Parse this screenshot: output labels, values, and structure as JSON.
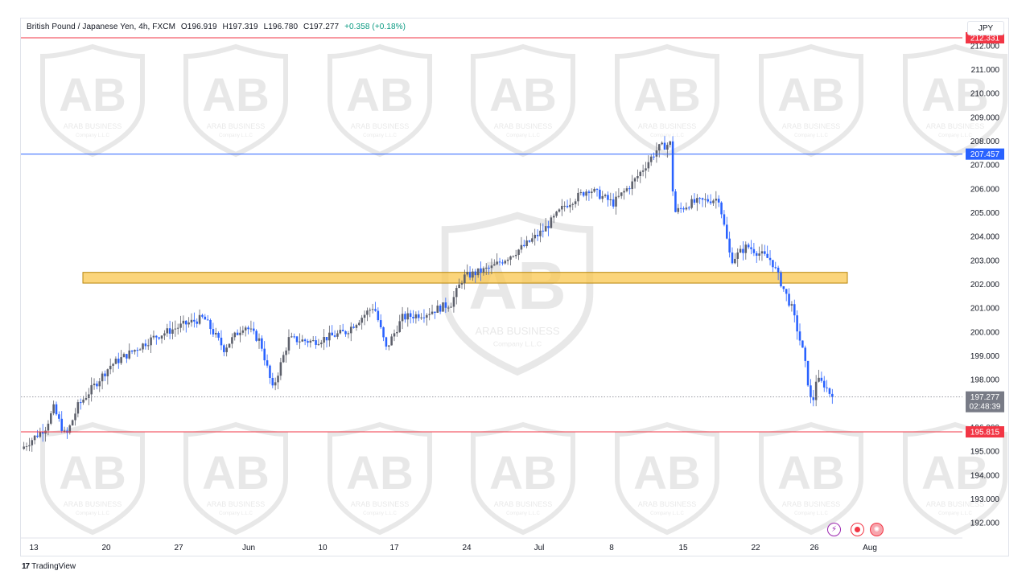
{
  "header": {
    "symbol": "British Pound / Japanese Yen, 4h, FXCM",
    "open": "O196.919",
    "high": "H197.319",
    "low": "L196.780",
    "close": "C197.277",
    "change": "+0.358 (+0.18%)"
  },
  "currency_button": "JPY",
  "footer": {
    "brand": "TradingView"
  },
  "watermark": {
    "name": "ARAB BUSINESS",
    "sub": "Company L.L.C"
  },
  "colors": {
    "up": "#089981",
    "down": "#2962ff",
    "candle": "#5d606b",
    "resistance_red": "#f23645",
    "blue_level": "#2962ff",
    "zone_fill": "#f9c74f",
    "zone_border": "#b8860b",
    "last_price": "#787b86"
  },
  "icons": [
    "lightning-icon",
    "record-icon",
    "globe-icon"
  ],
  "chart_data": {
    "type": "candlestick",
    "title": "British Pound / Japanese Yen, 4h, FXCM",
    "y_axis": {
      "ticks": [
        "212.000",
        "211.000",
        "210.000",
        "209.000",
        "208.000",
        "207.000",
        "206.000",
        "205.000",
        "204.000",
        "203.000",
        "202.000",
        "201.000",
        "200.000",
        "199.000",
        "198.000",
        "196.000",
        "195.000",
        "194.000",
        "193.000",
        "192.000"
      ],
      "ylim": [
        191.4,
        212.4
      ]
    },
    "x_axis": {
      "ticks": [
        "13",
        "20",
        "27",
        "Jun",
        "10",
        "17",
        "24",
        "Jul",
        "8",
        "15",
        "22",
        "26",
        "Aug"
      ]
    },
    "levels": [
      {
        "name": "resistance-top",
        "value": 212.331,
        "label": "212.331",
        "color": "#f23645"
      },
      {
        "name": "blue-level",
        "value": 207.457,
        "label": "207.457",
        "color": "#2962ff"
      },
      {
        "name": "support",
        "value": 195.815,
        "label": "195.815",
        "color": "#f23645"
      }
    ],
    "zone": {
      "from": 202.05,
      "to": 202.5,
      "start": "17 May",
      "end": "29 Jul"
    },
    "last_price": {
      "value": 197.277,
      "label": "197.277",
      "countdown": "02:48:39"
    },
    "path_anchors": [
      [
        0,
        195.1
      ],
      [
        0.03,
        196.0
      ],
      [
        0.04,
        196.8
      ],
      [
        0.055,
        195.6
      ],
      [
        0.07,
        196.9
      ],
      [
        0.11,
        198.6
      ],
      [
        0.165,
        199.8
      ],
      [
        0.2,
        200.3
      ],
      [
        0.225,
        200.6
      ],
      [
        0.25,
        199.3
      ],
      [
        0.275,
        200.3
      ],
      [
        0.295,
        199.6
      ],
      [
        0.31,
        197.6
      ],
      [
        0.33,
        199.7
      ],
      [
        0.36,
        199.6
      ],
      [
        0.4,
        200.0
      ],
      [
        0.435,
        201.1
      ],
      [
        0.45,
        199.3
      ],
      [
        0.47,
        200.6
      ],
      [
        0.5,
        200.8
      ],
      [
        0.53,
        201.2
      ],
      [
        0.545,
        202.3
      ],
      [
        0.58,
        202.7
      ],
      [
        0.62,
        203.6
      ],
      [
        0.645,
        204.3
      ],
      [
        0.67,
        205.3
      ],
      [
        0.7,
        206.0
      ],
      [
        0.73,
        205.4
      ],
      [
        0.755,
        206.3
      ],
      [
        0.785,
        207.7
      ],
      [
        0.8,
        207.9
      ],
      [
        0.805,
        205.0
      ],
      [
        0.825,
        205.4
      ],
      [
        0.86,
        205.6
      ],
      [
        0.875,
        203.0
      ],
      [
        0.895,
        203.6
      ],
      [
        0.925,
        203.0
      ],
      [
        0.935,
        202.2
      ],
      [
        0.95,
        201.0
      ],
      [
        0.965,
        199.0
      ],
      [
        0.975,
        196.8
      ],
      [
        0.98,
        198.0
      ],
      [
        0.99,
        197.8
      ],
      [
        1.0,
        197.277
      ]
    ]
  }
}
